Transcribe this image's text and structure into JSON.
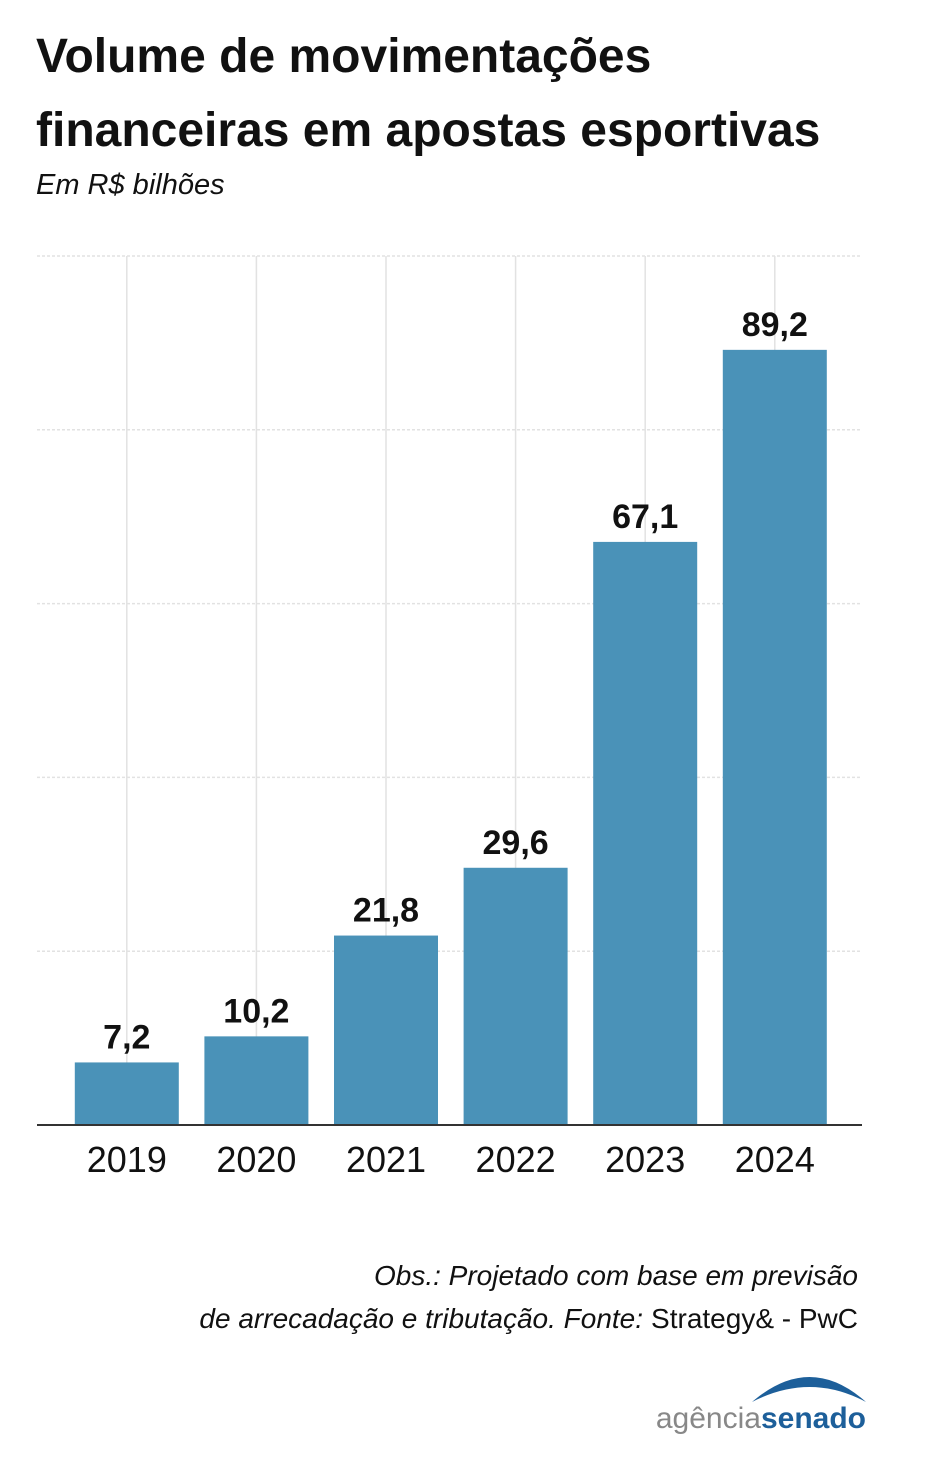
{
  "chart_data": {
    "type": "bar",
    "title": [
      "Volume de movimentações",
      "financeiras em apostas esportivas"
    ],
    "subtitle": "Em R$ bilhões",
    "categories": [
      "2019",
      "2020",
      "2021",
      "2022",
      "2023",
      "2024"
    ],
    "values": [
      7.2,
      10.2,
      21.8,
      29.6,
      67.1,
      89.2
    ],
    "value_labels": [
      "7,2",
      "10,2",
      "21,8",
      "29,6",
      "67,1",
      "89,2"
    ],
    "color": "#4a92b8",
    "ylim": [
      0,
      100
    ],
    "yticks": [
      0,
      20,
      40,
      60,
      80,
      100
    ],
    "grid": true,
    "note": [
      "Obs.: Projetado com base em previsão",
      "de arrecadação e tributação. Fonte:"
    ],
    "source": "Strategy& - PwC",
    "logo": [
      "agência",
      "senado"
    ]
  }
}
